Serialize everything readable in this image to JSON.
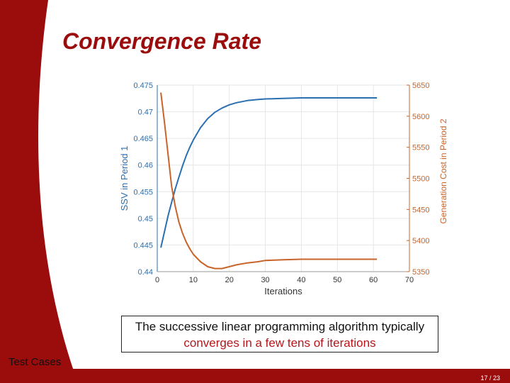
{
  "slide": {
    "title": "Convergence Rate",
    "caption_plain": "The successive linear programming algorithm typically",
    "caption_highlight": "converges in a few tens of iterations",
    "section": "Test Cases",
    "page": "17 / 23",
    "accent_color": "#9b0d0d"
  },
  "chart_data": {
    "type": "line",
    "xlabel": "Iterations",
    "ylabel_left": "SSV in Period 1",
    "ylabel_right": "Generation Cost in Period 2",
    "xlim": [
      0,
      70
    ],
    "ylim_left": [
      0.44,
      0.475
    ],
    "ylim_right": [
      5350,
      5650
    ],
    "x_ticks": [
      "0",
      "10",
      "20",
      "30",
      "40",
      "50",
      "60",
      "70"
    ],
    "y_ticks_left": [
      "0.44",
      "0.445",
      "0.45",
      "0.455",
      "0.46",
      "0.465",
      "0.47",
      "0.475"
    ],
    "y_ticks_right": [
      "5350",
      "5400",
      "5450",
      "5500",
      "5550",
      "5600",
      "5650"
    ],
    "grid": true,
    "series": [
      {
        "axis": "left",
        "color": "#2a6fb0",
        "x": [
          1,
          2,
          3,
          4,
          5,
          6,
          7,
          8,
          9,
          10,
          12,
          14,
          16,
          18,
          20,
          22,
          25,
          28,
          30,
          35,
          40,
          45,
          50,
          55,
          61
        ],
        "y": [
          0.4445,
          0.4475,
          0.4505,
          0.453,
          0.4555,
          0.4577,
          0.4598,
          0.4617,
          0.4633,
          0.4647,
          0.467,
          0.4687,
          0.4699,
          0.4707,
          0.4713,
          0.4717,
          0.4721,
          0.4723,
          0.4724,
          0.4725,
          0.4726,
          0.4726,
          0.4726,
          0.4726,
          0.4726
        ]
      },
      {
        "axis": "right",
        "color": "#c8642a",
        "x": [
          1,
          2,
          3,
          4,
          5,
          6,
          7,
          8,
          9,
          10,
          12,
          14,
          16,
          18,
          20,
          22,
          25,
          28,
          30,
          35,
          40,
          45,
          50,
          55,
          61
        ],
        "y": [
          5638,
          5590,
          5538,
          5487,
          5455,
          5430,
          5412,
          5398,
          5387,
          5378,
          5366,
          5358,
          5355,
          5355,
          5358,
          5361,
          5364,
          5366,
          5368,
          5369,
          5370,
          5370,
          5370,
          5370,
          5370
        ]
      }
    ]
  }
}
